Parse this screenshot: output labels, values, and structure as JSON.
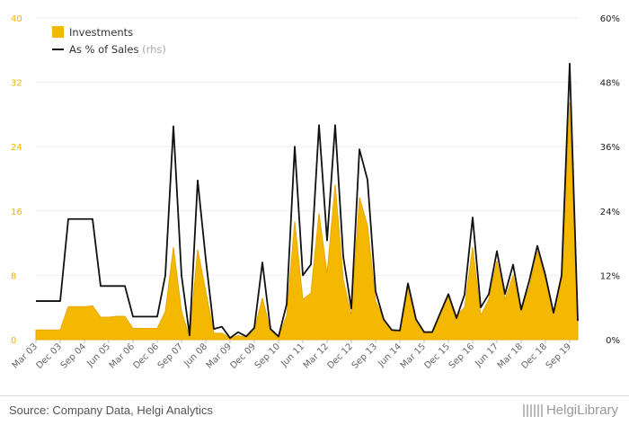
{
  "colors": {
    "investments": "#f5b800",
    "investments_stroke": "#e8a800",
    "line": "#111111"
  },
  "chart_data": {
    "type": "area",
    "categories": [
      "Mar 03",
      "Jun 03",
      "Sep 03",
      "Dec 03",
      "Mar 04",
      "Jun 04",
      "Sep 04",
      "Dec 04",
      "Mar 05",
      "Jun 05",
      "Sep 05",
      "Dec 05",
      "Mar 06",
      "Jun 06",
      "Sep 06",
      "Dec 06",
      "Mar 07",
      "Jun 07",
      "Sep 07",
      "Dec 07",
      "Mar 08",
      "Jun 08",
      "Sep 08",
      "Dec 08",
      "Mar 09",
      "Jun 09",
      "Sep 09",
      "Dec 09",
      "Mar 10",
      "Jun 10",
      "Sep 10",
      "Dec 10",
      "Mar 11",
      "Jun 11",
      "Sep 11",
      "Dec 11",
      "Mar 12",
      "Jun 12",
      "Sep 12",
      "Dec 12",
      "Mar 13",
      "Jun 13",
      "Sep 13",
      "Dec 13",
      "Mar 14",
      "Jun 14",
      "Sep 14",
      "Dec 14",
      "Mar 15",
      "Jun 15",
      "Sep 15",
      "Dec 15",
      "Mar 16",
      "Jun 16",
      "Sep 16",
      "Dec 16",
      "Mar 17",
      "Jun 17",
      "Sep 17",
      "Dec 17",
      "Mar 18",
      "Jun 18",
      "Sep 18",
      "Dec 18",
      "Mar 19",
      "Jun 19",
      "Sep 19",
      "Dec 19"
    ],
    "x_tick_labels": [
      "Mar 03",
      "Dec 03",
      "Sep 04",
      "Jun 05",
      "Mar 06",
      "Dec 06",
      "Sep 07",
      "Jun 08",
      "Mar 09",
      "Dec 09",
      "Sep 10",
      "Jun 11",
      "Mar 12",
      "Dec 12",
      "Sep 13",
      "Jun 14",
      "Mar 15",
      "Dec 15",
      "Sep 16",
      "Jun 17",
      "Mar 18",
      "Dec 18",
      "Sep 19"
    ],
    "series": [
      {
        "name": "Investments",
        "axis": "left",
        "kind": "area",
        "values": [
          1.2,
          1.2,
          1.2,
          1.2,
          4.1,
          4.1,
          4.1,
          4.2,
          2.8,
          2.8,
          2.9,
          2.9,
          1.4,
          1.4,
          1.4,
          1.4,
          3.5,
          11.5,
          3.5,
          0.3,
          11.2,
          6.0,
          0.8,
          0.8,
          0.2,
          0.5,
          0.3,
          1.2,
          5.2,
          1.1,
          0.3,
          3.0,
          14.7,
          5.0,
          5.8,
          15.7,
          8.2,
          19.3,
          7.5,
          3.0,
          17.7,
          14.2,
          4.8,
          2.6,
          1.1,
          1.1,
          6.5,
          2.5,
          1.0,
          1.0,
          3.0,
          5.5,
          3.0,
          4.0,
          11.5,
          3.0,
          5.0,
          9.8,
          5.0,
          8.0,
          3.8,
          6.5,
          11.0,
          7.5,
          3.5,
          7.5,
          29.5,
          2.0
        ]
      },
      {
        "name": "As % of Sales",
        "axis": "right",
        "kind": "line",
        "values": [
          7.2,
          7.2,
          7.2,
          7.2,
          22.5,
          22.5,
          22.5,
          22.5,
          10.0,
          10.0,
          10.0,
          10.0,
          4.3,
          4.3,
          4.3,
          4.3,
          12.0,
          39.8,
          12.0,
          0.8,
          29.7,
          15.0,
          2.0,
          2.4,
          0.3,
          1.4,
          0.6,
          2.2,
          14.4,
          2.0,
          0.6,
          6.6,
          36.0,
          12.0,
          14.0,
          40.0,
          18.5,
          40.0,
          15.5,
          5.8,
          35.5,
          29.8,
          9.0,
          3.8,
          1.8,
          1.7,
          10.5,
          3.8,
          1.4,
          1.4,
          5.0,
          8.5,
          4.0,
          8.4,
          22.8,
          6.0,
          8.5,
          16.5,
          8.5,
          14.0,
          5.6,
          11.0,
          17.5,
          12.0,
          5.0,
          12.0,
          51.5,
          3.5
        ]
      }
    ],
    "y_left": {
      "ylim": [
        0,
        40
      ],
      "ticks": [
        "0",
        "8",
        "16",
        "24",
        "32",
        "40"
      ]
    },
    "y_right": {
      "ylim": [
        0,
        60
      ],
      "ticks": [
        "0%",
        "12%",
        "24%",
        "36%",
        "48%",
        "60%"
      ]
    },
    "legend": {
      "position": "top-left",
      "items": [
        {
          "label": "Investments",
          "suffix": ""
        },
        {
          "label": "As % of Sales",
          "suffix": "(rhs)"
        }
      ]
    },
    "grid": true
  },
  "footer": {
    "source": "Source: Company Data, Helgi Analytics",
    "brand": "HelgiLibrary"
  }
}
